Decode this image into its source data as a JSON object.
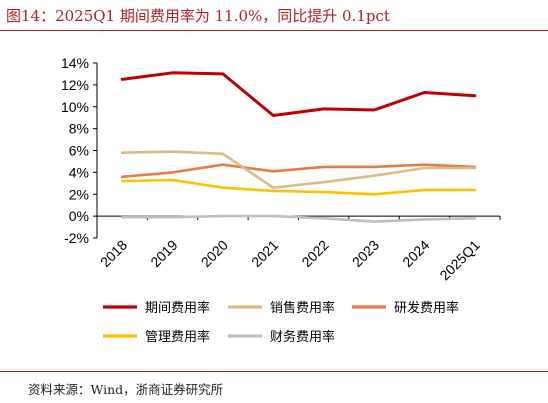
{
  "title": "图14：2025Q1 期间费用率为 11.0%，同比提升 0.1pct",
  "source": "资料来源：Wind，浙商证券研究所",
  "chart_data": {
    "type": "line",
    "categories": [
      "2018",
      "2019",
      "2020",
      "2021",
      "2022",
      "2023",
      "2024",
      "2025Q1"
    ],
    "y_ticks": [
      "-2%",
      "0%",
      "2%",
      "4%",
      "6%",
      "8%",
      "10%",
      "12%",
      "14%"
    ],
    "ylim": [
      -2,
      14
    ],
    "y_unit": "%",
    "grid": false,
    "legend_position": "bottom",
    "series": [
      {
        "name": "期间费用率",
        "color": "#c00000",
        "values": [
          12.5,
          13.1,
          13.0,
          9.2,
          9.8,
          9.7,
          11.3,
          11.0
        ]
      },
      {
        "name": "销售费用率",
        "color": "#dcbc85",
        "values": [
          5.8,
          5.9,
          5.7,
          2.6,
          3.1,
          3.7,
          4.4,
          4.4
        ]
      },
      {
        "name": "研发费用率",
        "color": "#e87b45",
        "values": [
          3.6,
          4.0,
          4.7,
          4.1,
          4.5,
          4.5,
          4.7,
          4.5
        ]
      },
      {
        "name": "管理费用率",
        "color": "#ffc000",
        "values": [
          3.2,
          3.3,
          2.6,
          2.3,
          2.2,
          2.0,
          2.4,
          2.4
        ]
      },
      {
        "name": "财务费用率",
        "color": "#bfbfbf",
        "values": [
          -0.1,
          -0.1,
          0.0,
          0.0,
          -0.2,
          -0.5,
          -0.3,
          -0.2
        ]
      }
    ]
  }
}
